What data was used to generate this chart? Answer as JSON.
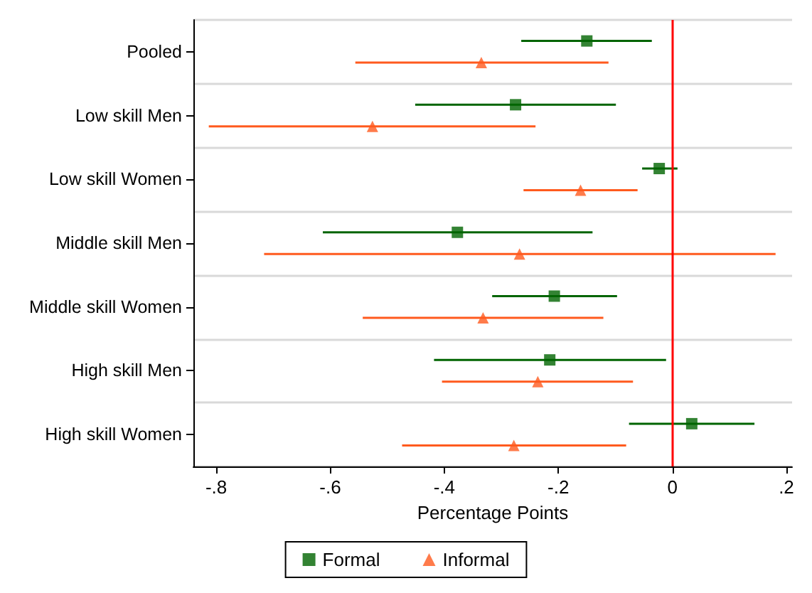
{
  "chart_data": {
    "type": "scatter",
    "orientation": "horizontal",
    "xlabel": "Percentage Points",
    "categories": [
      "Pooled",
      "Low skill Men",
      "Low skill Women",
      "Middle skill Men",
      "Middle skill Women",
      "High skill Men",
      "High skill Women"
    ],
    "series": [
      {
        "name": "Formal",
        "color": "#006400",
        "marker": "square",
        "values": [
          -0.15,
          -0.275,
          -0.023,
          -0.377,
          -0.207,
          -0.215,
          0.034
        ],
        "errors": [
          [
            -0.265,
            -0.036
          ],
          [
            -0.451,
            -0.099
          ],
          [
            -0.053,
            0.009
          ],
          [
            -0.613,
            -0.14
          ],
          [
            -0.316,
            -0.097
          ],
          [
            -0.418,
            -0.011
          ],
          [
            -0.076,
            0.144
          ]
        ]
      },
      {
        "name": "Informal",
        "color": "#ff5a1e",
        "marker": "triangle",
        "values": [
          -0.335,
          -0.526,
          -0.161,
          -0.268,
          -0.332,
          -0.236,
          -0.278
        ],
        "errors": [
          [
            -0.556,
            -0.112
          ],
          [
            -0.813,
            -0.24
          ],
          [
            -0.261,
            -0.061
          ],
          [
            -0.716,
            0.181
          ],
          [
            -0.543,
            -0.121
          ],
          [
            -0.404,
            -0.069
          ],
          [
            -0.474,
            -0.081
          ]
        ]
      }
    ],
    "xlim": [
      -0.84,
      0.21
    ],
    "xticks": [
      {
        "value": -0.8,
        "label": "-.8"
      },
      {
        "value": -0.6,
        "label": "-.6"
      },
      {
        "value": -0.4,
        "label": "-.4"
      },
      {
        "value": -0.2,
        "label": "-.2"
      },
      0,
      {
        "value": 0.2,
        "label": ".2"
      }
    ],
    "ref_lines": [
      {
        "axis": "x",
        "value": 0,
        "color": "#ff0000"
      }
    ],
    "grid": "y",
    "legend": "bottom"
  }
}
